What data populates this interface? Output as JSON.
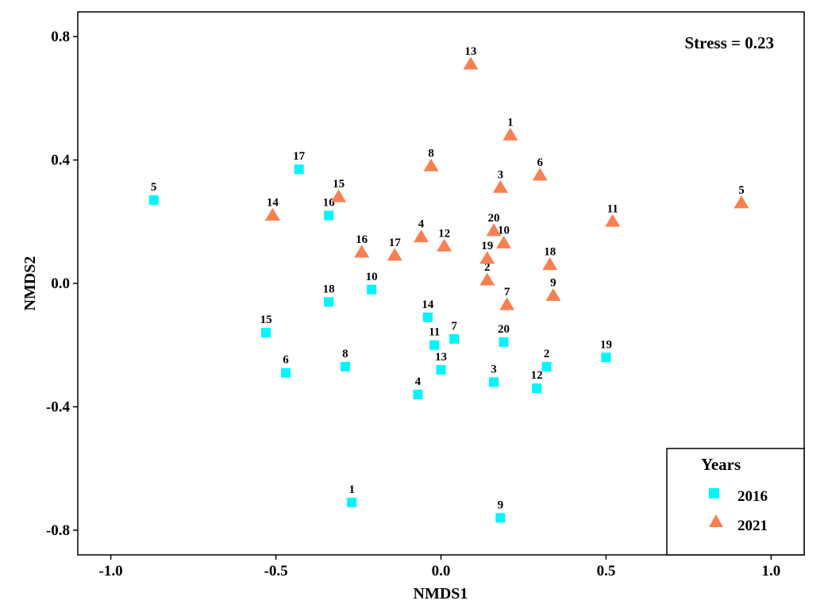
{
  "chart_data": {
    "type": "scatter",
    "xlabel": "NMDS1",
    "ylabel": "NMDS2",
    "xlim": [
      -1.1,
      1.1
    ],
    "ylim": [
      -0.88,
      0.88
    ],
    "xticks": [
      -1.0,
      -0.5,
      0.0,
      0.5,
      1.0
    ],
    "xtick_labels": [
      "-1.0",
      "-0.5",
      "0.0",
      "0.5",
      "1.0"
    ],
    "yticks": [
      -0.8,
      -0.4,
      0.0,
      0.4,
      0.8
    ],
    "ytick_labels": [
      "-0.8",
      "-0.4",
      "0.0",
      "0.4",
      "0.8"
    ],
    "grid": false,
    "annotation": "Stress = 0.23",
    "legend": {
      "title": "Years",
      "placement": "bottom-right"
    },
    "series": [
      {
        "name": "2016",
        "marker": "square",
        "color": "#00F5FF",
        "points": [
          {
            "label": "1",
            "x": -0.27,
            "y": -0.71
          },
          {
            "label": "2",
            "x": 0.32,
            "y": -0.27
          },
          {
            "label": "3",
            "x": 0.16,
            "y": -0.32
          },
          {
            "label": "4",
            "x": -0.07,
            "y": -0.36
          },
          {
            "label": "5",
            "x": -0.87,
            "y": 0.27
          },
          {
            "label": "6",
            "x": -0.47,
            "y": -0.29
          },
          {
            "label": "7",
            "x": 0.04,
            "y": -0.18
          },
          {
            "label": "8",
            "x": -0.29,
            "y": -0.27
          },
          {
            "label": "9",
            "x": 0.18,
            "y": -0.76
          },
          {
            "label": "10",
            "x": -0.21,
            "y": -0.02
          },
          {
            "label": "11",
            "x": -0.02,
            "y": -0.2
          },
          {
            "label": "12",
            "x": 0.29,
            "y": -0.34
          },
          {
            "label": "13",
            "x": 0.0,
            "y": -0.28
          },
          {
            "label": "14",
            "x": -0.04,
            "y": -0.11
          },
          {
            "label": "15",
            "x": -0.53,
            "y": -0.16
          },
          {
            "label": "16",
            "x": -0.34,
            "y": 0.22
          },
          {
            "label": "17",
            "x": -0.43,
            "y": 0.37
          },
          {
            "label": "18",
            "x": -0.34,
            "y": -0.06
          },
          {
            "label": "19",
            "x": 0.5,
            "y": -0.24
          },
          {
            "label": "20",
            "x": 0.19,
            "y": -0.19
          }
        ]
      },
      {
        "name": "2021",
        "marker": "triangle",
        "color": "#F97F51",
        "points": [
          {
            "label": "1",
            "x": 0.21,
            "y": 0.48
          },
          {
            "label": "2",
            "x": 0.14,
            "y": 0.01
          },
          {
            "label": "3",
            "x": 0.18,
            "y": 0.31
          },
          {
            "label": "4",
            "x": -0.06,
            "y": 0.15
          },
          {
            "label": "5",
            "x": 0.91,
            "y": 0.26
          },
          {
            "label": "6",
            "x": 0.3,
            "y": 0.35
          },
          {
            "label": "7",
            "x": 0.2,
            "y": -0.07
          },
          {
            "label": "8",
            "x": -0.03,
            "y": 0.38
          },
          {
            "label": "9",
            "x": 0.34,
            "y": -0.04
          },
          {
            "label": "10",
            "x": 0.19,
            "y": 0.13
          },
          {
            "label": "11",
            "x": 0.52,
            "y": 0.2
          },
          {
            "label": "12",
            "x": 0.01,
            "y": 0.12
          },
          {
            "label": "13",
            "x": 0.09,
            "y": 0.71
          },
          {
            "label": "14",
            "x": -0.51,
            "y": 0.22
          },
          {
            "label": "15",
            "x": -0.31,
            "y": 0.28
          },
          {
            "label": "16",
            "x": -0.24,
            "y": 0.1
          },
          {
            "label": "17",
            "x": -0.14,
            "y": 0.09
          },
          {
            "label": "18",
            "x": 0.33,
            "y": 0.06
          },
          {
            "label": "19",
            "x": 0.14,
            "y": 0.08
          },
          {
            "label": "20",
            "x": 0.16,
            "y": 0.17
          }
        ]
      }
    ]
  }
}
